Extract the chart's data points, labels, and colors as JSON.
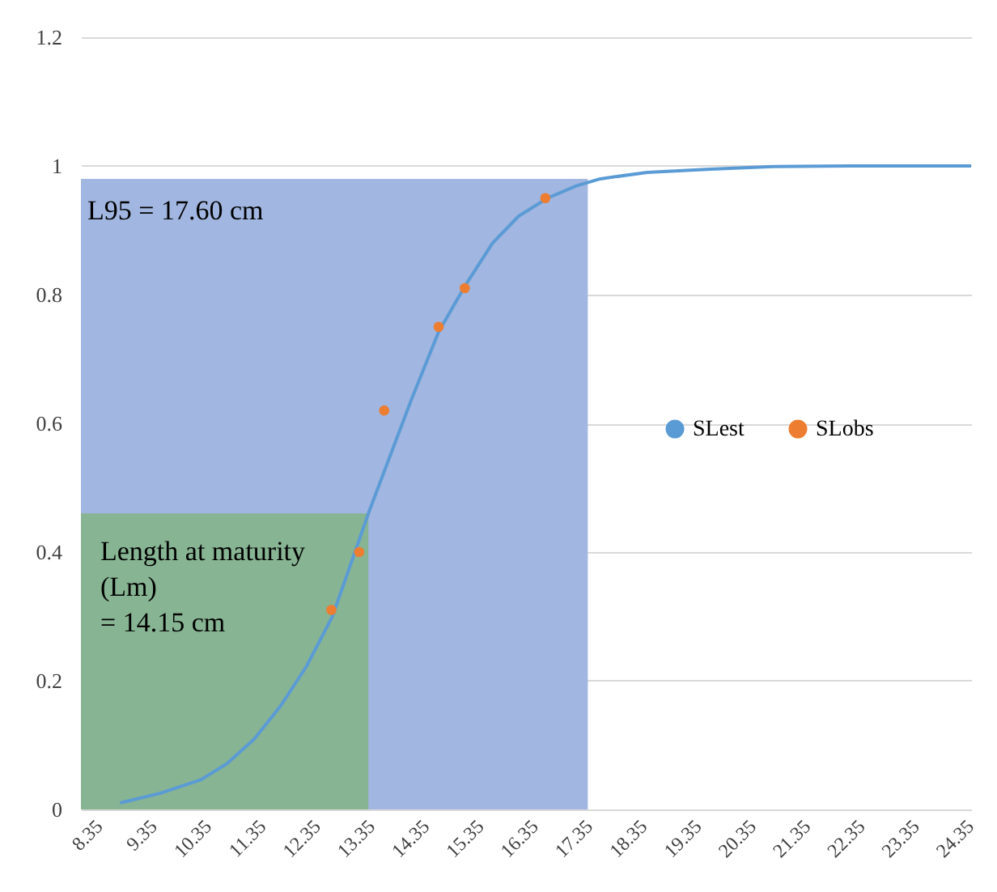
{
  "chart_data": {
    "type": "area",
    "xlim": [
      8.35,
      24.7
    ],
    "xticks": [
      8.35,
      9.35,
      10.35,
      11.35,
      12.35,
      13.35,
      14.35,
      15.35,
      16.35,
      17.35,
      18.35,
      19.35,
      20.35,
      21.35,
      22.35,
      23.35,
      24.35
    ],
    "ylim": [
      0,
      1.2
    ],
    "yticks": [
      0,
      0.2,
      0.4,
      0.6,
      0.8,
      1,
      1.2
    ],
    "grid": "y",
    "legend": "right",
    "series": [
      {
        "color": "#a1b6e0",
        "x": [
          8.35,
          17.66
        ],
        "values": [
          0.98,
          0.98
        ]
      },
      {
        "color": "#87b493",
        "x": [
          8.35,
          13.63
        ],
        "values": [
          0.46,
          0.46
        ]
      },
      {
        "name": "SLest",
        "type": "line",
        "color": "#5b9bd5",
        "x": [
          9.07,
          9.8,
          10.55,
          11.03,
          11.53,
          12.01,
          12.49,
          12.97,
          13.63,
          14.42,
          14.92,
          15.4,
          15.91,
          16.39,
          16.92,
          17.45,
          17.89,
          18.75,
          19.91,
          21.07,
          22.5,
          24.7
        ],
        "values": [
          0.01,
          0.025,
          0.046,
          0.071,
          0.109,
          0.16,
          0.222,
          0.3,
          0.46,
          0.637,
          0.742,
          0.813,
          0.88,
          0.922,
          0.95,
          0.969,
          0.98,
          0.99,
          0.995,
          0.999,
          1,
          1
        ]
      },
      {
        "name": "SLobs",
        "type": "scatter",
        "color": "#ed7d31",
        "x": [
          12.95,
          13.46,
          13.92,
          14.92,
          15.4,
          16.88
        ],
        "values": [
          0.31,
          0.4,
          0.62,
          0.75,
          0.81,
          0.95
        ]
      }
    ],
    "annotations": [
      "L95 = 17.60 cm",
      "Length at maturity\n(Lm)\n= 14.15 cm"
    ]
  }
}
